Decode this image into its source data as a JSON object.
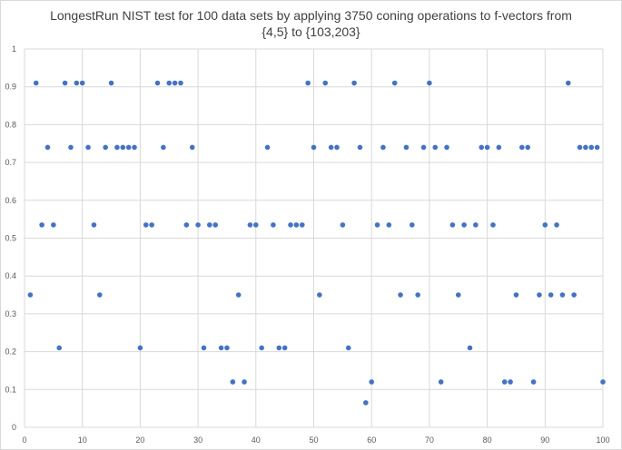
{
  "chart_data": {
    "type": "scatter",
    "title_line1": "LongestRun NIST test for 100 data sets by applying 3750 coning operations to f-vectors from",
    "title_line2": "{4,5} to {103,203}",
    "xlabel": "",
    "ylabel": "",
    "xlim": [
      0,
      100
    ],
    "ylim": [
      0,
      1
    ],
    "x_ticks": [
      "0",
      "10",
      "20",
      "30",
      "40",
      "50",
      "60",
      "70",
      "80",
      "90",
      "100"
    ],
    "y_ticks": [
      "0",
      "0.1",
      "0.2",
      "0.3",
      "0.4",
      "0.5",
      "0.6",
      "0.7",
      "0.8",
      "0.9",
      "1"
    ],
    "grid": true,
    "legend": "none",
    "marker_color": "#4472c4",
    "gridline_color": "#d9d9d9",
    "series": [
      {
        "x": [
          1,
          2,
          3,
          4,
          5,
          6,
          7,
          8,
          9,
          10,
          11,
          12,
          13,
          14,
          15,
          16,
          17,
          18,
          19,
          20,
          21,
          22,
          23,
          24,
          25,
          26,
          27,
          28,
          29,
          30,
          31,
          32,
          33,
          34,
          35,
          36,
          37,
          38,
          39,
          40,
          41,
          42,
          43,
          44,
          45,
          46,
          47,
          48,
          49,
          50,
          51,
          52,
          53,
          54,
          55,
          56,
          57,
          58,
          59,
          60,
          61,
          62,
          63,
          64,
          65,
          66,
          67,
          68,
          69,
          70,
          71,
          72,
          73,
          74,
          75,
          76,
          77,
          78,
          79,
          80,
          81,
          82,
          83,
          84,
          85,
          86,
          87,
          88,
          89,
          90,
          91,
          92,
          93,
          94,
          95,
          96,
          97,
          98,
          99,
          100
        ],
        "y": [
          0.35,
          0.91,
          0.535,
          0.74,
          0.535,
          0.21,
          0.91,
          0.74,
          0.91,
          0.91,
          0.74,
          0.535,
          0.35,
          0.74,
          0.91,
          0.74,
          0.74,
          0.74,
          0.74,
          0.21,
          0.535,
          0.535,
          0.91,
          0.74,
          0.91,
          0.91,
          0.91,
          0.535,
          0.74,
          0.535,
          0.21,
          0.535,
          0.535,
          0.21,
          0.21,
          0.12,
          0.35,
          0.12,
          0.535,
          0.535,
          0.21,
          0.74,
          0.535,
          0.21,
          0.21,
          0.535,
          0.535,
          0.535,
          0.91,
          0.74,
          0.35,
          0.91,
          0.74,
          0.74,
          0.535,
          0.21,
          0.91,
          0.74,
          0.065,
          0.12,
          0.535,
          0.74,
          0.535,
          0.91,
          0.35,
          0.74,
          0.535,
          0.35,
          0.74,
          0.91,
          0.74,
          0.12,
          0.74,
          0.535,
          0.35,
          0.535,
          0.21,
          0.535,
          0.74,
          0.74,
          0.535,
          0.74,
          0.12,
          0.12,
          0.35,
          0.74,
          0.74,
          0.12,
          0.35,
          0.535,
          0.35,
          0.535,
          0.35,
          0.91,
          0.35,
          0.74,
          0.74,
          0.74,
          0.74,
          0.12
        ]
      }
    ]
  }
}
